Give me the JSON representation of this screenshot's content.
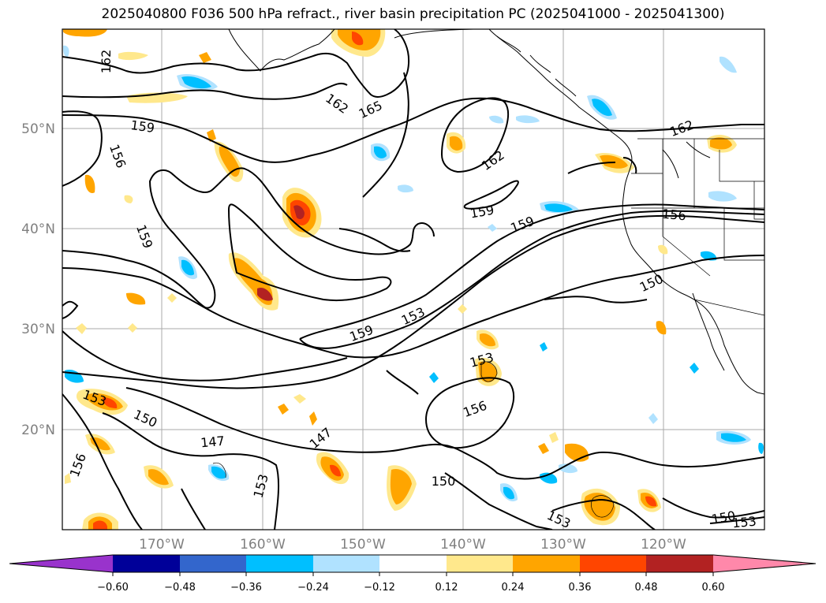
{
  "title": "2025040800 F036 500 hPa refract., river basin precipitation PC (2025041000 - 2025041300)",
  "map": {
    "lat_labels": [
      "50°N",
      "40°N",
      "30°N",
      "20°N"
    ],
    "lon_labels": [
      "170°W",
      "160°W",
      "150°W",
      "140°W",
      "130°W",
      "120°W"
    ],
    "contour_labels": [
      {
        "name": "label-162-a",
        "text": "162"
      },
      {
        "name": "label-162-b",
        "text": "162"
      },
      {
        "name": "label-165",
        "text": "165"
      },
      {
        "name": "label-159-a",
        "text": "159"
      },
      {
        "name": "label-156-a",
        "text": "156"
      },
      {
        "name": "label-162-c",
        "text": "162"
      },
      {
        "name": "label-162-d",
        "text": "162"
      },
      {
        "name": "label-159-b",
        "text": "159"
      },
      {
        "name": "label-159-c",
        "text": "159"
      },
      {
        "name": "label-156-b",
        "text": "156"
      },
      {
        "name": "label-159-d",
        "text": "159"
      },
      {
        "name": "label-150-a",
        "text": "150"
      },
      {
        "name": "label-153-a",
        "text": "153"
      },
      {
        "name": "label-159-e",
        "text": "159"
      },
      {
        "name": "label-153-b",
        "text": "153"
      },
      {
        "name": "label-156-c",
        "text": "156"
      },
      {
        "name": "label-153-c",
        "text": "153"
      },
      {
        "name": "label-150-b",
        "text": "150"
      },
      {
        "name": "label-147-a",
        "text": "147"
      },
      {
        "name": "label-147-b",
        "text": "147"
      },
      {
        "name": "label-156-d",
        "text": "156"
      },
      {
        "name": "label-153-d",
        "text": "153"
      },
      {
        "name": "label-150-c",
        "text": "150"
      },
      {
        "name": "label-153-e",
        "text": "153"
      },
      {
        "name": "label-150-d",
        "text": "150"
      },
      {
        "name": "label-153-f",
        "text": "153"
      }
    ]
  },
  "colorbar": {
    "ticks": [
      "−0.60",
      "−0.48",
      "−0.36",
      "−0.24",
      "−0.12",
      "0.12",
      "0.24",
      "0.36",
      "0.48",
      "0.60"
    ],
    "colors": [
      "#9933cc",
      "#000099",
      "#3366cc",
      "#00bfff",
      "#b0e2ff",
      "#ffffff",
      "#ffe88c",
      "#ffa500",
      "#ff4500",
      "#b22222",
      "#ff88aa"
    ]
  }
}
